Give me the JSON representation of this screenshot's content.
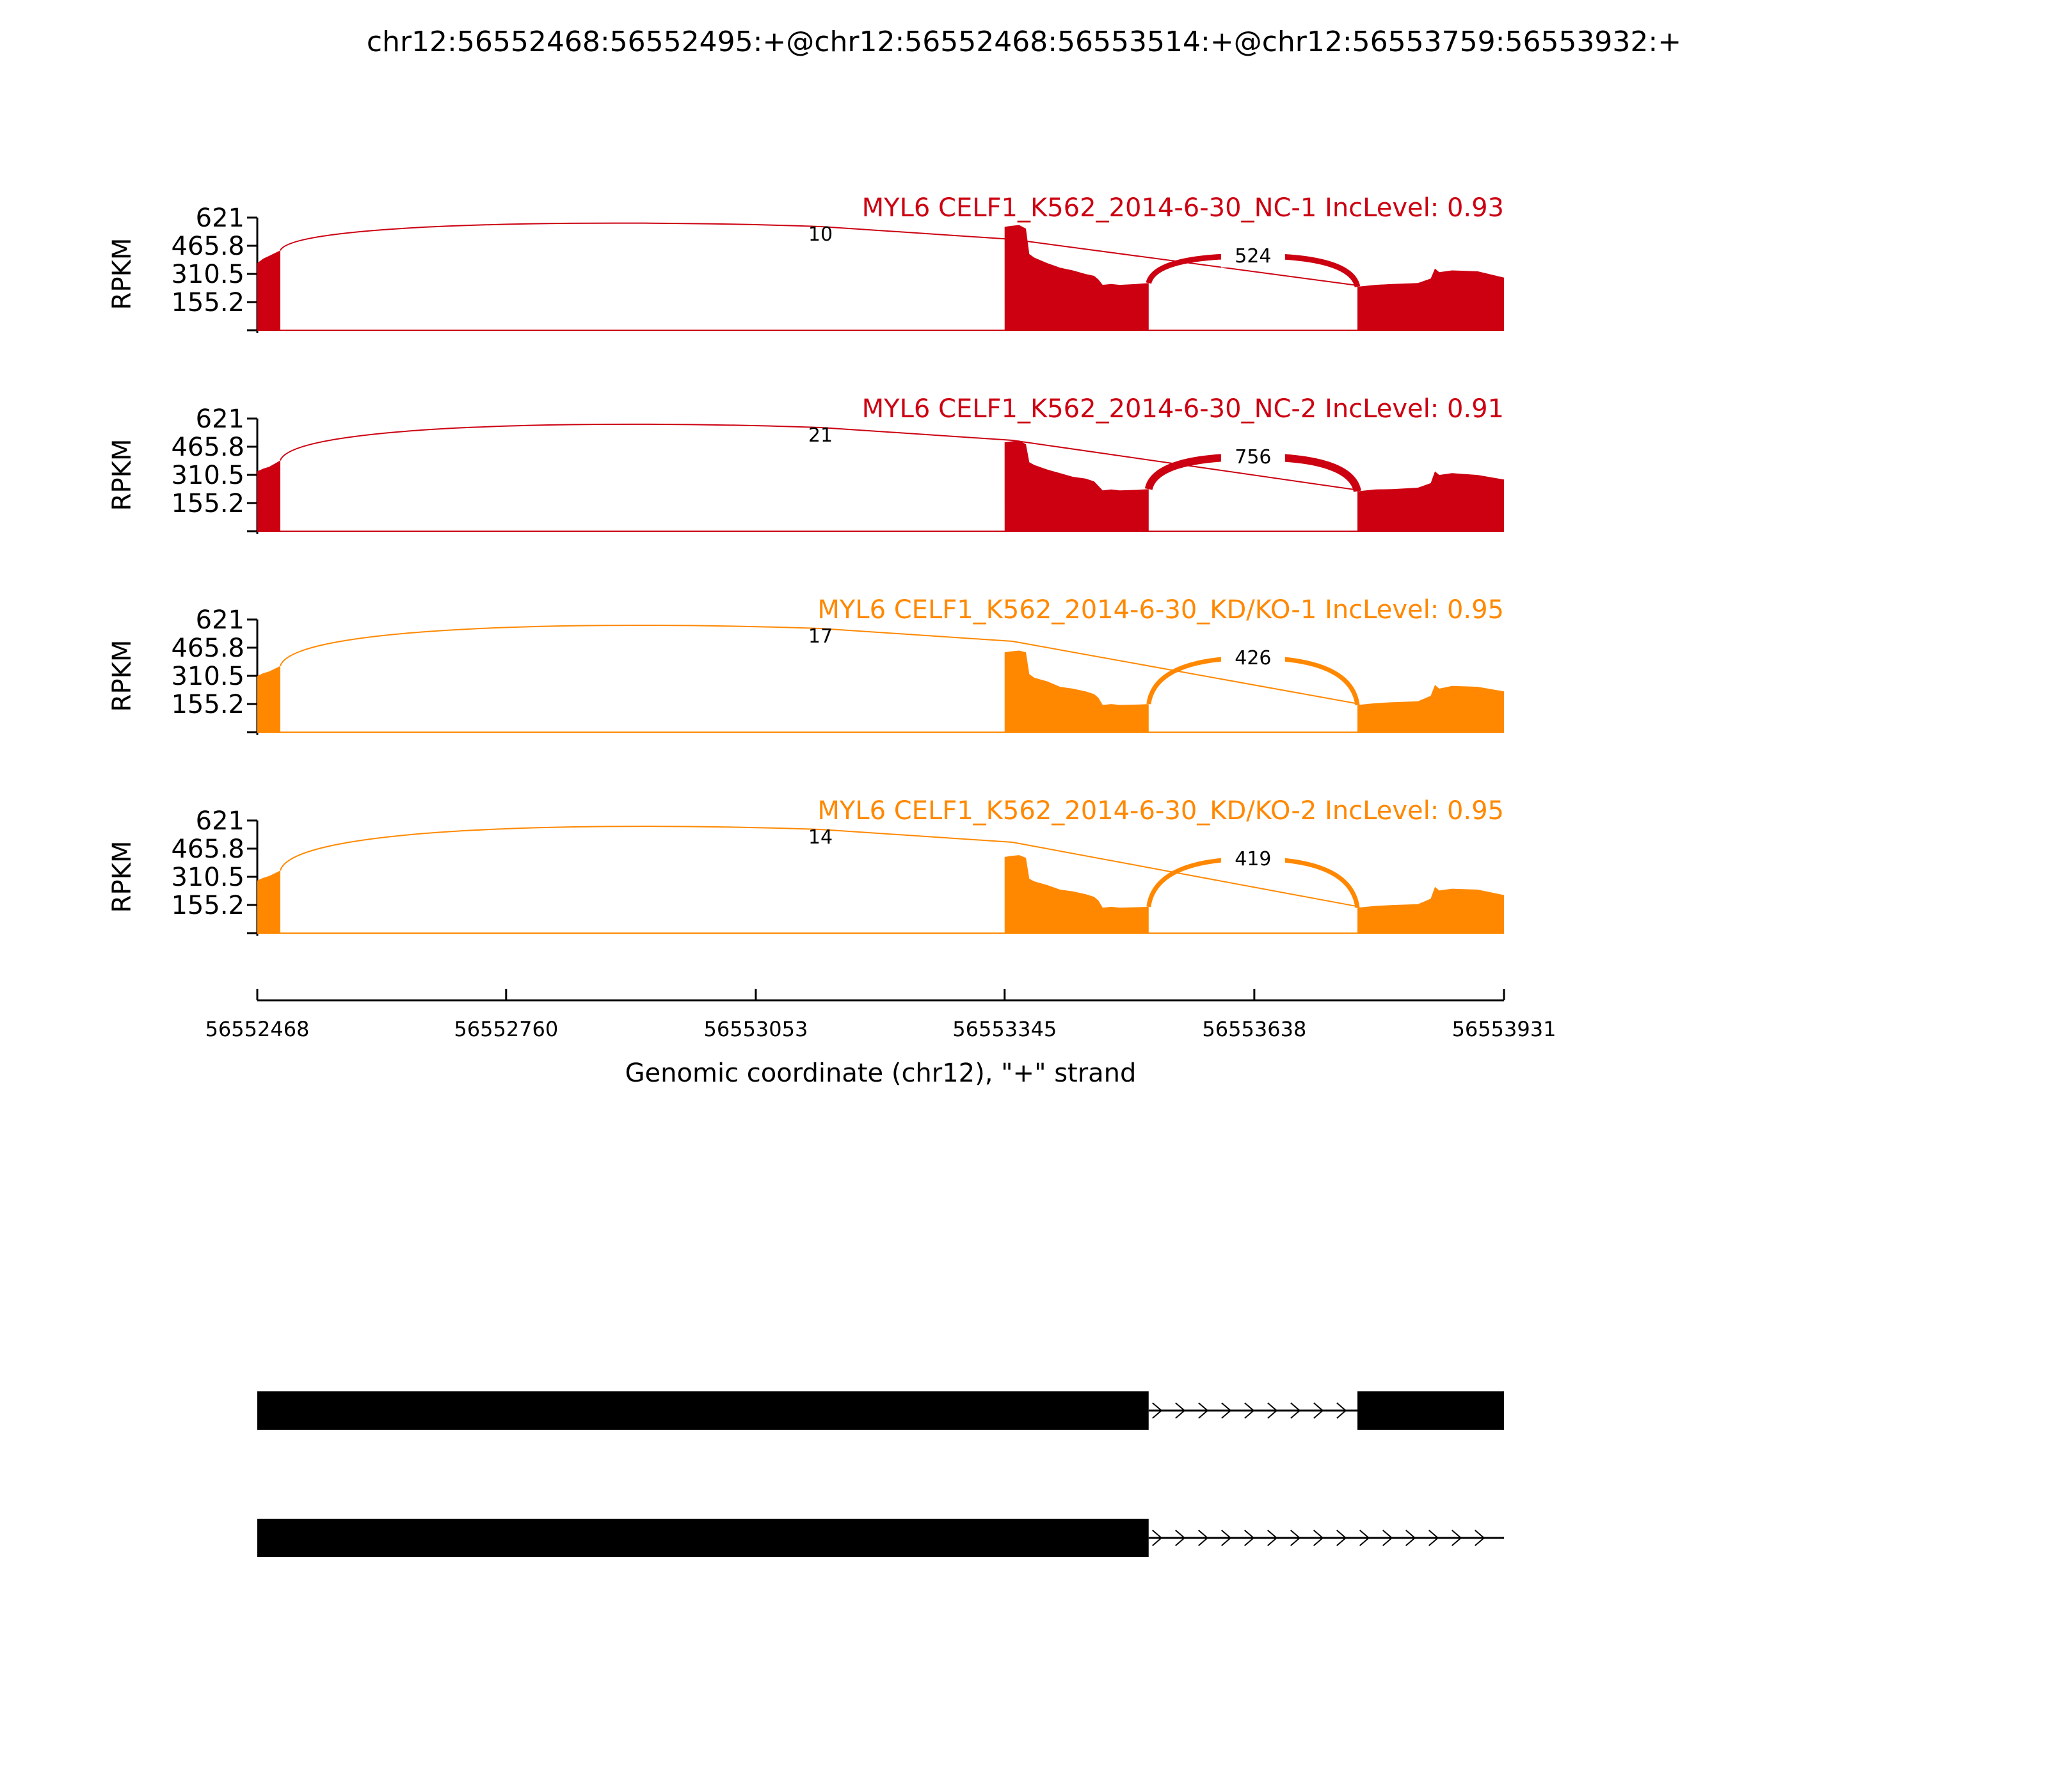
{
  "chart_data": {
    "type": "sashimi",
    "title": "chr12:56552468:56552495:+@chr12:56552468:56553514:+@chr12:56553759:56553932:+",
    "ylabel": "RPKM",
    "xlabel": "Genomic coordinate (chr12), \"+\" strand",
    "xlim": [
      56552468,
      56553931
    ],
    "x_ticks": [
      "56552468",
      "56552760",
      "56553053",
      "56553345",
      "56553638",
      "56553931"
    ],
    "ylim": [
      0,
      621
    ],
    "y_ticks": [
      "621",
      "465.8",
      "310.5",
      "155.2"
    ],
    "x_tick_values": [
      56552468,
      56552760,
      56553053,
      56553345,
      56553638,
      56553931
    ],
    "y_tick_values": [
      621,
      465.8,
      310.5,
      155.2
    ],
    "exon_regions": [
      [
        56552468,
        56552495
      ],
      [
        56553345,
        56553514
      ],
      [
        56553759,
        56553931
      ]
    ],
    "panels": [
      {
        "label": "MYL6 CELF1_K562_2014-6-30_NC-1 IncLevel: 0.93",
        "color": "#cc0011",
        "coverage": {
          "e1": [
            [
              56552468,
              370
            ],
            [
              56552475,
              395
            ],
            [
              56552482,
              410
            ],
            [
              56552495,
              440
            ]
          ],
          "e2": [
            [
              56553345,
              570
            ],
            [
              56553352,
              575
            ],
            [
              56553362,
              580
            ],
            [
              56553370,
              560
            ],
            [
              56553374,
              420
            ],
            [
              56553380,
              400
            ],
            [
              56553395,
              370
            ],
            [
              56553410,
              345
            ],
            [
              56553425,
              330
            ],
            [
              56553440,
              310
            ],
            [
              56553450,
              300
            ],
            [
              56553455,
              280
            ],
            [
              56553460,
              250
            ],
            [
              56553470,
              255
            ],
            [
              56553480,
              250
            ],
            [
              56553500,
              255
            ],
            [
              56553514,
              260
            ]
          ],
          "e3": [
            [
              56553759,
              240
            ],
            [
              56553780,
              250
            ],
            [
              56553800,
              255
            ],
            [
              56553830,
              260
            ],
            [
              56553845,
              285
            ],
            [
              56553850,
              340
            ],
            [
              56553855,
              320
            ],
            [
              56553870,
              330
            ],
            [
              56553900,
              325
            ],
            [
              56553931,
              290
            ]
          ]
        },
        "junctions": [
          {
            "from": 56552495,
            "to": 56553759,
            "label": "10",
            "reads": 10
          },
          {
            "from": 56553514,
            "to": 56553759,
            "label": "524",
            "reads": 524
          }
        ]
      },
      {
        "label": "MYL6 CELF1_K562_2014-6-30_NC-2 IncLevel: 0.91",
        "color": "#cc0011",
        "coverage": {
          "e1": [
            [
              56552468,
              330
            ],
            [
              56552475,
              345
            ],
            [
              56552482,
              355
            ],
            [
              56552495,
              390
            ]
          ],
          "e2": [
            [
              56553345,
              490
            ],
            [
              56553352,
              495
            ],
            [
              56553362,
              500
            ],
            [
              56553370,
              480
            ],
            [
              56553374,
              380
            ],
            [
              56553380,
              365
            ],
            [
              56553395,
              340
            ],
            [
              56553410,
              320
            ],
            [
              56553425,
              300
            ],
            [
              56553440,
              290
            ],
            [
              56553450,
              275
            ],
            [
              56553455,
              250
            ],
            [
              56553460,
              225
            ],
            [
              56553470,
              230
            ],
            [
              56553480,
              225
            ],
            [
              56553500,
              228
            ],
            [
              56553514,
              232
            ]
          ],
          "e3": [
            [
              56553759,
              220
            ],
            [
              56553780,
              230
            ],
            [
              56553800,
              232
            ],
            [
              56553830,
              240
            ],
            [
              56553845,
              265
            ],
            [
              56553850,
              330
            ],
            [
              56553855,
              310
            ],
            [
              56553870,
              320
            ],
            [
              56553900,
              310
            ],
            [
              56553931,
              285
            ]
          ]
        },
        "junctions": [
          {
            "from": 56552495,
            "to": 56553759,
            "label": "21",
            "reads": 21
          },
          {
            "from": 56553514,
            "to": 56553759,
            "label": "756",
            "reads": 756
          }
        ]
      },
      {
        "label": "MYL6 CELF1_K562_2014-6-30_KD/KO-1 IncLevel: 0.95",
        "color": "#ff8800",
        "coverage": {
          "e1": [
            [
              56552468,
              310
            ],
            [
              56552475,
              325
            ],
            [
              56552482,
              335
            ],
            [
              56552495,
              365
            ]
          ],
          "e2": [
            [
              56553345,
              440
            ],
            [
              56553352,
              445
            ],
            [
              56553362,
              450
            ],
            [
              56553370,
              440
            ],
            [
              56553374,
              320
            ],
            [
              56553380,
              300
            ],
            [
              56553395,
              280
            ],
            [
              56553410,
              250
            ],
            [
              56553425,
              240
            ],
            [
              56553440,
              225
            ],
            [
              56553450,
              210
            ],
            [
              56553455,
              190
            ],
            [
              56553460,
              150
            ],
            [
              56553470,
              155
            ],
            [
              56553480,
              150
            ],
            [
              56553500,
              152
            ],
            [
              56553514,
              155
            ]
          ],
          "e3": [
            [
              56553759,
              150
            ],
            [
              56553780,
              160
            ],
            [
              56553800,
              165
            ],
            [
              56553830,
              170
            ],
            [
              56553845,
              200
            ],
            [
              56553850,
              260
            ],
            [
              56553855,
              240
            ],
            [
              56553870,
              255
            ],
            [
              56553900,
              250
            ],
            [
              56553931,
              225
            ]
          ]
        },
        "junctions": [
          {
            "from": 56552495,
            "to": 56553759,
            "label": "17",
            "reads": 17
          },
          {
            "from": 56553514,
            "to": 56553759,
            "label": "426",
            "reads": 426
          }
        ]
      },
      {
        "label": "MYL6 CELF1_K562_2014-6-30_KD/KO-2 IncLevel: 0.95",
        "color": "#ff8800",
        "coverage": {
          "e1": [
            [
              56552468,
              290
            ],
            [
              56552475,
              305
            ],
            [
              56552482,
              315
            ],
            [
              56552495,
              345
            ]
          ],
          "e2": [
            [
              56553345,
              420
            ],
            [
              56553352,
              425
            ],
            [
              56553362,
              430
            ],
            [
              56553370,
              415
            ],
            [
              56553374,
              300
            ],
            [
              56553380,
              285
            ],
            [
              56553395,
              265
            ],
            [
              56553410,
              240
            ],
            [
              56553425,
              230
            ],
            [
              56553440,
              215
            ],
            [
              56553450,
              200
            ],
            [
              56553455,
              180
            ],
            [
              56553460,
              140
            ],
            [
              56553470,
              145
            ],
            [
              56553480,
              140
            ],
            [
              56553500,
              143
            ],
            [
              56553514,
              145
            ]
          ],
          "e3": [
            [
              56553759,
              140
            ],
            [
              56553780,
              150
            ],
            [
              56553800,
              155
            ],
            [
              56553830,
              160
            ],
            [
              56553845,
              190
            ],
            [
              56553850,
              255
            ],
            [
              56553855,
              235
            ],
            [
              56553870,
              245
            ],
            [
              56553900,
              240
            ],
            [
              56553931,
              210
            ]
          ]
        },
        "junctions": [
          {
            "from": 56552495,
            "to": 56553759,
            "label": "14",
            "reads": 14
          },
          {
            "from": 56553514,
            "to": 56553759,
            "label": "419",
            "reads": 419
          }
        ]
      }
    ],
    "gene_models": [
      {
        "exons": [
          [
            56552468,
            56553514
          ],
          [
            56553759,
            56553931
          ]
        ],
        "intron": [
          56553514,
          56553759
        ],
        "strand": "+"
      },
      {
        "exons": [
          [
            56552468,
            56553514
          ]
        ],
        "intron": [
          56553514,
          56553931
        ],
        "strand": "+"
      }
    ]
  }
}
